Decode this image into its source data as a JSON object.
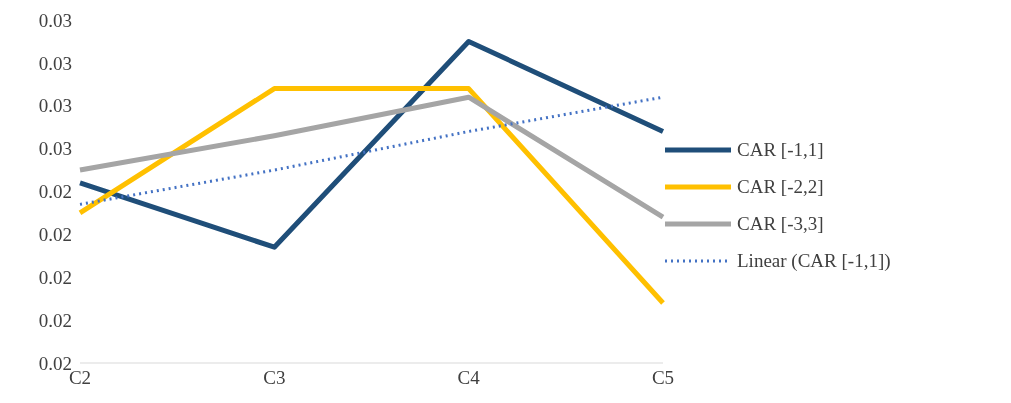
{
  "chart_data": {
    "type": "line",
    "categories": [
      "C2",
      "C3",
      "C4",
      "C5"
    ],
    "series": [
      {
        "name": "CAR [-1,1]",
        "color": "#1f4e79",
        "values": [
          0.0242,
          0.0227,
          0.0275,
          0.0254
        ]
      },
      {
        "name": "CAR [-2,2]",
        "color": "#ffc000",
        "values": [
          0.0235,
          0.0264,
          0.0264,
          0.0214
        ]
      },
      {
        "name": "CAR [-3,3]",
        "color": "#a5a5a5",
        "values": [
          0.0245,
          0.0253,
          0.0262,
          0.0234
        ]
      },
      {
        "name": "Linear (CAR [-1,1])",
        "color": "#4472c4",
        "line_style": "dotted",
        "values": [
          0.0237,
          0.0245,
          0.0254,
          0.0262
        ]
      }
    ],
    "ylim": [
      0.02,
      0.028
    ],
    "yticks": [
      {
        "value": 0.02,
        "label": "0.02"
      },
      {
        "value": 0.021,
        "label": "0.02"
      },
      {
        "value": 0.022,
        "label": "0.02"
      },
      {
        "value": 0.023,
        "label": "0.02"
      },
      {
        "value": 0.024,
        "label": "0.02"
      },
      {
        "value": 0.025,
        "label": "0.03"
      },
      {
        "value": 0.026,
        "label": "0.03"
      },
      {
        "value": 0.027,
        "label": "0.03"
      },
      {
        "value": 0.028,
        "label": "0.03"
      }
    ],
    "grid": false,
    "legend": "right",
    "marker": "none",
    "line_style": "solid"
  }
}
